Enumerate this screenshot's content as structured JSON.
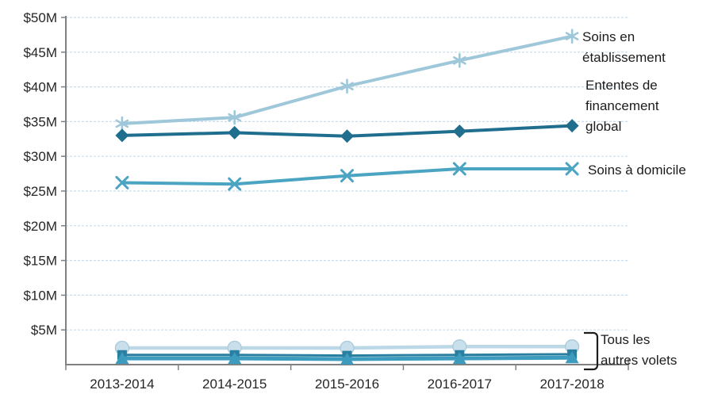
{
  "chart_data": {
    "type": "line",
    "title": "",
    "categories": [
      "2013-2014",
      "2014-2015",
      "2015-2016",
      "2016-2017",
      "2017-2018"
    ],
    "y_axis": {
      "min": 0,
      "max": 50,
      "step": 5,
      "unit": "M",
      "prefix": "$",
      "tick_labels": [
        "$50M",
        "$45M",
        "$40M",
        "$35M",
        "$30M",
        "$25M",
        "$20M",
        "$15M",
        "$10M",
        "$5M"
      ]
    },
    "grid": "dashed-horizontal",
    "legend_position": "right-inline-labels",
    "series": [
      {
        "name": "Soins en établissement",
        "values": [
          34.7,
          35.6,
          40.1,
          43.8,
          47.3
        ],
        "color": "#9ec7da",
        "marker": "asterisk",
        "line_width": 4
      },
      {
        "name": "Ententes de financement global",
        "values": [
          33.0,
          33.4,
          32.9,
          33.6,
          34.4
        ],
        "color": "#206e8e",
        "marker": "diamond",
        "line_width": 4
      },
      {
        "name": "Soins à domicile",
        "values": [
          26.2,
          26.0,
          27.2,
          28.2,
          28.2
        ],
        "color": "#4ba4c2",
        "marker": "x",
        "line_width": 4
      },
      {
        "name": "Tous les autres volets",
        "group": "Tous les autres volets",
        "values": [
          2.4,
          2.4,
          2.4,
          2.6,
          2.6
        ],
        "color": "#bcd8e6",
        "marker": "circle",
        "marker_fill": "#c9dfec",
        "marker_stroke": "#a4c9db",
        "line_width": 4.5
      },
      {
        "name": "Tous les autres volets",
        "group": "Tous les autres volets",
        "values": [
          1.4,
          1.4,
          1.3,
          1.4,
          1.5
        ],
        "color": "#2a7fa0",
        "marker": "square",
        "line_width": 3
      },
      {
        "name": "Tous les autres volets",
        "group": "Tous les autres volets",
        "values": [
          0.9,
          0.9,
          0.8,
          0.9,
          1.0
        ],
        "color": "#3d9cbe",
        "marker": "triangle",
        "line_width": 5
      }
    ],
    "labels": {
      "soins_etablissement": "Soins en\nétablissement",
      "ententes": "Ententes de\nfinancement\nglobal",
      "soins_domicile": "Soins à domicile",
      "tous_autres": "Tous les\nautres volets"
    },
    "colors": {
      "axis": "#808080",
      "gridline": "#c7ddee",
      "text": "#262626",
      "bracket": "#1c1c1c"
    }
  }
}
